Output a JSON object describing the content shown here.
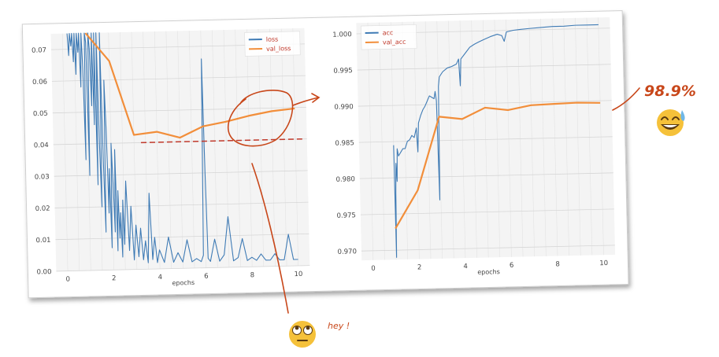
{
  "annotations": {
    "accuracy_note": "98.9%",
    "hey_note": "hey !"
  },
  "colors": {
    "series_blue": "#3f7bb5",
    "series_orange": "#f28e3a",
    "annotation": "#c8471a",
    "emoji_face": "#f5c13a",
    "grid": "#d6d6d6",
    "plot_bg": "#f4f4f4"
  },
  "icons": [
    "grinning-sweat-emoji",
    "eye-roll-emoji"
  ],
  "chart_data": [
    {
      "type": "line",
      "xlabel": "epochs",
      "ylabel": "",
      "xlim": [
        -0.5,
        10.5
      ],
      "ylim": [
        0.0,
        0.075
      ],
      "xticks": [
        "0",
        "2",
        "4",
        "6",
        "8",
        "10"
      ],
      "yticks": [
        "0.00",
        "0.01",
        "0.02",
        "0.03",
        "0.04",
        "0.05",
        "0.06",
        "0.07"
      ],
      "grid": true,
      "legend": "top-right",
      "reference_line_y": 0.04,
      "series": [
        {
          "name": "loss",
          "color": "#3f7bb5",
          "x": [
            0.2,
            0.25,
            0.3,
            0.35,
            0.4,
            0.45,
            0.5,
            0.55,
            0.6,
            0.65,
            0.7,
            0.75,
            0.8,
            0.85,
            0.9,
            0.95,
            1.0,
            1.05,
            1.1,
            1.15,
            1.2,
            1.25,
            1.3,
            1.35,
            1.4,
            1.45,
            1.5,
            1.55,
            1.6,
            1.65,
            1.7,
            1.75,
            1.8,
            1.85,
            1.9,
            1.95,
            2.0,
            2.05,
            2.1,
            2.15,
            2.2,
            2.25,
            2.3,
            2.35,
            2.4,
            2.45,
            2.5,
            2.6,
            2.7,
            2.8,
            2.9,
            3.0,
            3.1,
            3.2,
            3.3,
            3.4,
            3.5,
            3.6,
            3.7,
            3.8,
            3.9,
            4.0,
            4.2,
            4.4,
            4.6,
            4.8,
            5.0,
            5.2,
            5.4,
            5.6,
            5.8,
            5.9,
            6.0,
            6.05,
            6.1,
            6.2,
            6.4,
            6.6,
            6.8,
            7.0,
            7.2,
            7.4,
            7.6,
            7.8,
            8.0,
            8.2,
            8.4,
            8.6,
            8.8,
            9.0,
            9.2,
            9.4,
            9.6,
            9.8,
            10.0
          ],
          "y": [
            0.075,
            0.068,
            0.075,
            0.071,
            0.075,
            0.066,
            0.075,
            0.062,
            0.075,
            0.069,
            0.075,
            0.058,
            0.075,
            0.064,
            0.035,
            0.075,
            0.072,
            0.03,
            0.075,
            0.07,
            0.052,
            0.075,
            0.046,
            0.075,
            0.027,
            0.075,
            0.04,
            0.02,
            0.075,
            0.035,
            0.012,
            0.06,
            0.045,
            0.018,
            0.032,
            0.007,
            0.04,
            0.028,
            0.012,
            0.038,
            0.006,
            0.025,
            0.01,
            0.018,
            0.004,
            0.022,
            0.008,
            0.028,
            0.006,
            0.02,
            0.003,
            0.014,
            0.004,
            0.013,
            0.003,
            0.009,
            0.002,
            0.024,
            0.003,
            0.01,
            0.002,
            0.006,
            0.002,
            0.01,
            0.002,
            0.005,
            0.002,
            0.009,
            0.002,
            0.003,
            0.002,
            0.004,
            0.066,
            0.03,
            0.003,
            0.002,
            0.009,
            0.002,
            0.004,
            0.016,
            0.002,
            0.003,
            0.009,
            0.002,
            0.003,
            0.002,
            0.004,
            0.002,
            0.002,
            0.004,
            0.002,
            0.002,
            0.01,
            0.002,
            0.002
          ]
        },
        {
          "name": "val_loss",
          "color": "#f28e3a",
          "x": [
            1,
            2,
            3,
            4,
            5,
            6,
            7,
            8,
            9,
            10
          ],
          "y": [
            0.075,
            0.066,
            0.0425,
            0.0433,
            0.0413,
            0.0447,
            0.046,
            0.0477,
            0.049,
            0.0497
          ]
        }
      ]
    },
    {
      "type": "line",
      "xlabel": "epochs",
      "ylabel": "",
      "xlim": [
        -0.5,
        10.5
      ],
      "ylim": [
        0.9687,
        1.0015
      ],
      "xticks": [
        "0",
        "2",
        "4",
        "6",
        "8",
        "10"
      ],
      "yticks": [
        "0.970",
        "0.975",
        "0.980",
        "0.985",
        "0.990",
        "0.995",
        "1.000"
      ],
      "grid": true,
      "legend": "top-left",
      "series": [
        {
          "name": "acc",
          "color": "#3f7bb5",
          "x": [
            1.0,
            1.02,
            1.05,
            1.08,
            1.12,
            1.15,
            1.2,
            1.3,
            1.4,
            1.5,
            1.6,
            1.7,
            1.8,
            1.9,
            2.0,
            2.05,
            2.1,
            2.2,
            2.3,
            2.4,
            2.5,
            2.6,
            2.7,
            2.8,
            2.85,
            2.9,
            2.95,
            3.0,
            3.05,
            3.2,
            3.4,
            3.6,
            3.8,
            3.9,
            3.95,
            4.0,
            4.2,
            4.4,
            4.6,
            4.8,
            5.0,
            5.3,
            5.6,
            5.8,
            5.9,
            6.0,
            6.3,
            6.6,
            7.0,
            7.5,
            8.0,
            8.5,
            9.0,
            9.5,
            10.0
          ],
          "y": [
            0.9845,
            0.969,
            0.978,
            0.982,
            0.9795,
            0.984,
            0.983,
            0.9835,
            0.984,
            0.984,
            0.985,
            0.9852,
            0.9858,
            0.9855,
            0.9868,
            0.9835,
            0.9875,
            0.9885,
            0.9893,
            0.9898,
            0.9905,
            0.9912,
            0.991,
            0.9908,
            0.9918,
            0.9905,
            0.9768,
            0.9925,
            0.9938,
            0.9945,
            0.995,
            0.9952,
            0.9955,
            0.9962,
            0.9925,
            0.9962,
            0.997,
            0.9978,
            0.9982,
            0.9985,
            0.9988,
            0.9992,
            0.9995,
            0.9993,
            0.9985,
            0.9998,
            1.0,
            1.0001,
            1.0002,
            1.0003,
            1.0004,
            1.0004,
            1.0005,
            1.0005,
            1.0005
          ]
        },
        {
          "name": "val_acc",
          "color": "#f28e3a",
          "x": [
            1,
            2,
            3,
            4,
            5,
            6,
            7,
            8,
            9,
            10
          ],
          "y": [
            0.973,
            0.9782,
            0.9883,
            0.9879,
            0.9894,
            0.989,
            0.9896,
            0.9897,
            0.9898,
            0.9897
          ]
        }
      ]
    }
  ]
}
